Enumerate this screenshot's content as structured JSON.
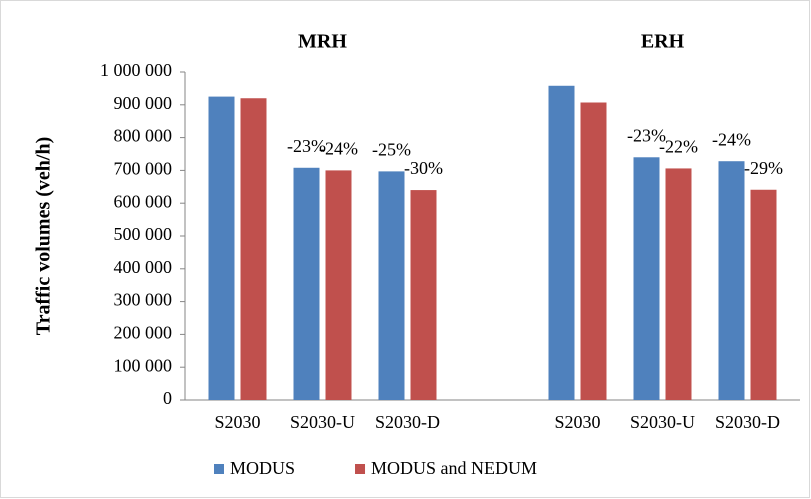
{
  "chart_data": {
    "type": "bar",
    "group_labels": [
      "MRH",
      "ERH"
    ],
    "y_label": "Traffic volumes (veh/h)",
    "categories": [
      "S2030",
      "S2030-U",
      "S2030-D",
      null,
      "S2030",
      "S2030-U",
      "S2030-D"
    ],
    "series": [
      {
        "name": "MODUS",
        "color": "#4f81bd",
        "values": [
          925000,
          708000,
          697000,
          null,
          958000,
          740000,
          728000
        ],
        "change_labels": [
          null,
          "-23%",
          "-25%",
          null,
          null,
          "-23%",
          "-24%"
        ]
      },
      {
        "name": "MODUS and NEDUM",
        "color": "#c0504d",
        "values": [
          920000,
          700000,
          640000,
          null,
          907000,
          706000,
          641000
        ],
        "change_labels": [
          null,
          "-24%",
          "-30%",
          null,
          null,
          "-22%",
          "-29%"
        ]
      }
    ],
    "ylim": [
      0,
      1000000
    ],
    "yticks": [
      0,
      {
        "value": 100000,
        "label": "100 000"
      },
      {
        "value": 200000,
        "label": "200 000"
      },
      {
        "value": 300000,
        "label": "300 000"
      },
      {
        "value": 400000,
        "label": "400 000"
      },
      {
        "value": 500000,
        "label": "500 000"
      },
      {
        "value": 600000,
        "label": "600 000"
      },
      {
        "value": 700000,
        "label": "700 000"
      },
      {
        "value": 800000,
        "label": "800 000"
      },
      {
        "value": 900000,
        "label": "900 000"
      },
      {
        "value": 1000000,
        "label": "1 000 000"
      }
    ],
    "grid": false,
    "legend": "bottom"
  }
}
